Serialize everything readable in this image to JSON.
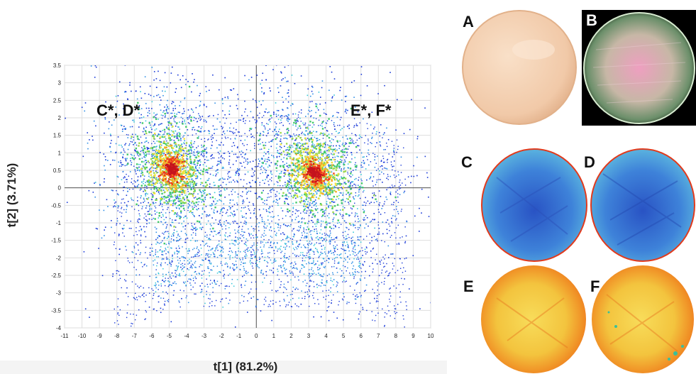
{
  "chart_data": {
    "type": "scatter",
    "xlabel": "t[1] (81.2%)",
    "ylabel": "t[2] (3.71%)",
    "xlim": [
      -11,
      10
    ],
    "ylim": [
      -4,
      3.5
    ],
    "x_ticks": [
      "-11",
      "-10",
      "-9",
      "-8",
      "-7",
      "-6",
      "-5",
      "-4",
      "-3",
      "-2",
      "-1",
      "0",
      "1",
      "2",
      "3",
      "4",
      "5",
      "6",
      "7",
      "8",
      "9",
      "10"
    ],
    "y_ticks": [
      "3.5",
      "3",
      "2.5",
      "2",
      "1.5",
      "1",
      "0.5",
      "0",
      "-0.5",
      "-1",
      "-1.5",
      "-2",
      "-2.5",
      "-3",
      "-3.5",
      "-4"
    ],
    "grid": true,
    "annotations": [
      {
        "text": "C*, D*",
        "x": -7.5,
        "y": 1.9
      },
      {
        "text": "E*, F*",
        "x": 5.4,
        "y": 1.9
      }
    ],
    "clusters": [
      {
        "center": [
          -4.9,
          0.55
        ],
        "spread": [
          1.9,
          1.05
        ]
      },
      {
        "center": [
          3.3,
          0.45
        ],
        "spread": [
          2.2,
          1.0
        ]
      }
    ],
    "colormap": [
      "#1a3ad8",
      "#2f8fe6",
      "#36c8d8",
      "#43c96a",
      "#9bd84a",
      "#f2e23a",
      "#f5a623",
      "#ee3a1c",
      "#c4141e"
    ]
  },
  "panels": [
    {
      "label": "A",
      "kind": "photo",
      "colors": {
        "fill": "#f3cfb1",
        "edge": "#e8bb98"
      }
    },
    {
      "label": "B",
      "kind": "rgb-image",
      "colors": {
        "bg": "#000000",
        "fill": "#d78aa8",
        "edge": "#cfe6c8"
      }
    },
    {
      "label": "C",
      "kind": "score-map",
      "colors": {
        "base": "#3d7fd6",
        "dark": "#2a5cc4",
        "rim": "#e23a1c"
      }
    },
    {
      "label": "D",
      "kind": "score-map",
      "colors": {
        "base": "#3b78d2",
        "dark": "#2854bf",
        "rim": "#e23a1c"
      }
    },
    {
      "label": "E",
      "kind": "score-map",
      "colors": {
        "base": "#f2b232",
        "light": "#f7d553",
        "rim": "#e8321a"
      }
    },
    {
      "label": "F",
      "kind": "score-map",
      "colors": {
        "base": "#f2be3a",
        "light": "#f7d553",
        "rim": "#e8321a"
      }
    }
  ]
}
